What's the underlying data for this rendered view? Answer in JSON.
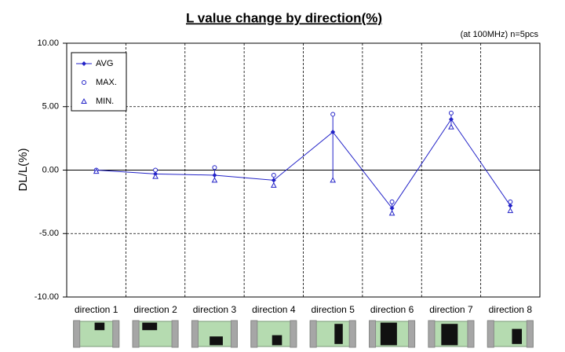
{
  "chart_data": {
    "type": "line",
    "title": "L value change by direction(%)",
    "subtitle": "(at 100MHz)  n=5pcs",
    "y_label": "DL/L(%)",
    "categories": [
      "direction 1",
      "direction 2",
      "direction 3",
      "direction 4",
      "direction 5",
      "direction 6",
      "direction 7",
      "direction 8"
    ],
    "series": [
      {
        "name": "AVG",
        "color": "#2323c8",
        "marker": "diamond",
        "line": true,
        "values": [
          0,
          -0.3,
          -0.4,
          -0.8,
          3.0,
          -3.0,
          4.0,
          -2.8
        ]
      },
      {
        "name": "MAX.",
        "color": "#2323c8",
        "marker": "circle",
        "line": false,
        "values": [
          0,
          0,
          0.2,
          -0.4,
          4.4,
          -2.5,
          4.5,
          -2.5
        ]
      },
      {
        "name": "MIN.",
        "color": "#2323c8",
        "marker": "triangle",
        "line": false,
        "values": [
          -0.1,
          -0.5,
          -0.8,
          -1.2,
          -0.8,
          -3.4,
          3.4,
          -3.2
        ]
      }
    ],
    "ylim": [
      -10,
      10
    ],
    "yticks": [
      {
        "value": -10,
        "label": "-10.00"
      },
      {
        "value": -5,
        "label": "-5.00"
      },
      {
        "value": 0,
        "label": "0.00"
      },
      {
        "value": 5,
        "label": "5.00"
      },
      {
        "value": 10,
        "label": "10.00"
      }
    ],
    "grid": true,
    "legend": "upper left"
  }
}
